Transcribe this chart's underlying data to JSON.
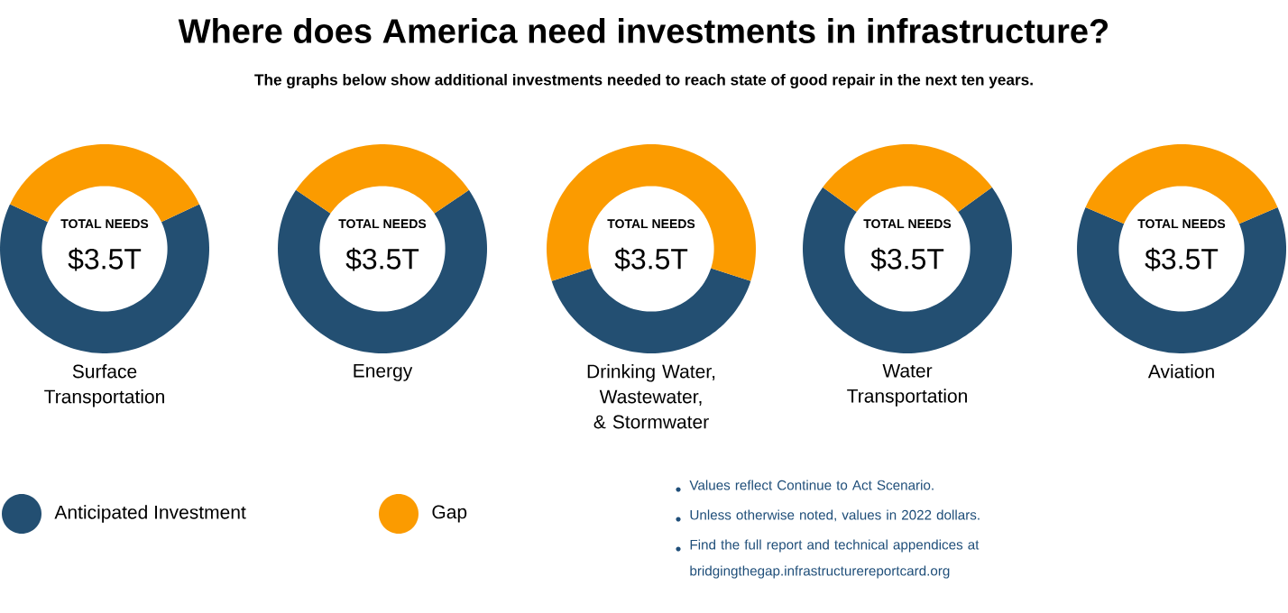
{
  "chart_data": [
    {
      "type": "donut",
      "title": "Surface Transportation",
      "categories": [
        "Anticipated Investment",
        "Gap"
      ],
      "values": [
        64,
        36
      ],
      "colors": [
        "#234f72",
        "#fb9b00"
      ],
      "annotations": [
        "TOTAL NEEDS",
        "$3.5T"
      ],
      "legend": "bottom"
    },
    {
      "type": "donut",
      "title": "Energy",
      "categories": [
        null,
        null
      ],
      "values": [
        69,
        31
      ],
      "colors": [
        "#234f72",
        "#fb9b00"
      ],
      "annotations": [
        "TOTAL NEEDS",
        "$3.5T"
      ]
    },
    {
      "type": "donut",
      "title": "Drinking Water, Wastewater, & Stormwater",
      "categories": [
        null,
        null
      ],
      "values": [
        40,
        60
      ],
      "colors": [
        "#234f72",
        "#fb9b00"
      ],
      "annotations": [
        "TOTAL NEEDS",
        "$3.5T"
      ]
    },
    {
      "type": "donut",
      "title": "Water Transportation",
      "categories": [
        null,
        null
      ],
      "values": [
        70,
        30
      ],
      "colors": [
        "#234f72",
        "#fb9b00"
      ],
      "annotations": [
        "TOTAL NEEDS",
        "$3.5T"
      ]
    },
    {
      "type": "donut",
      "title": "Aviation",
      "categories": [
        null,
        null
      ],
      "values": [
        63,
        37
      ],
      "colors": [
        "#234f72",
        "#fb9b00"
      ],
      "annotations": [
        "TOTAL NEEDS",
        "$3.5T"
      ]
    },
    {
      "type": "other",
      "title": "Where does America need investments in infrastructure?",
      "subtitle": "The graphs below show additional investments needed to reach state of good repair in the next ten years.",
      "annotations": [
        "Values reflect Continue to Act Scenario.",
        "Unless otherwise noted, values in 2022 dollars.",
        "Find the full report and technical appendices at bridgingthegap.infrastructurereportcard.org"
      ]
    }
  ]
}
